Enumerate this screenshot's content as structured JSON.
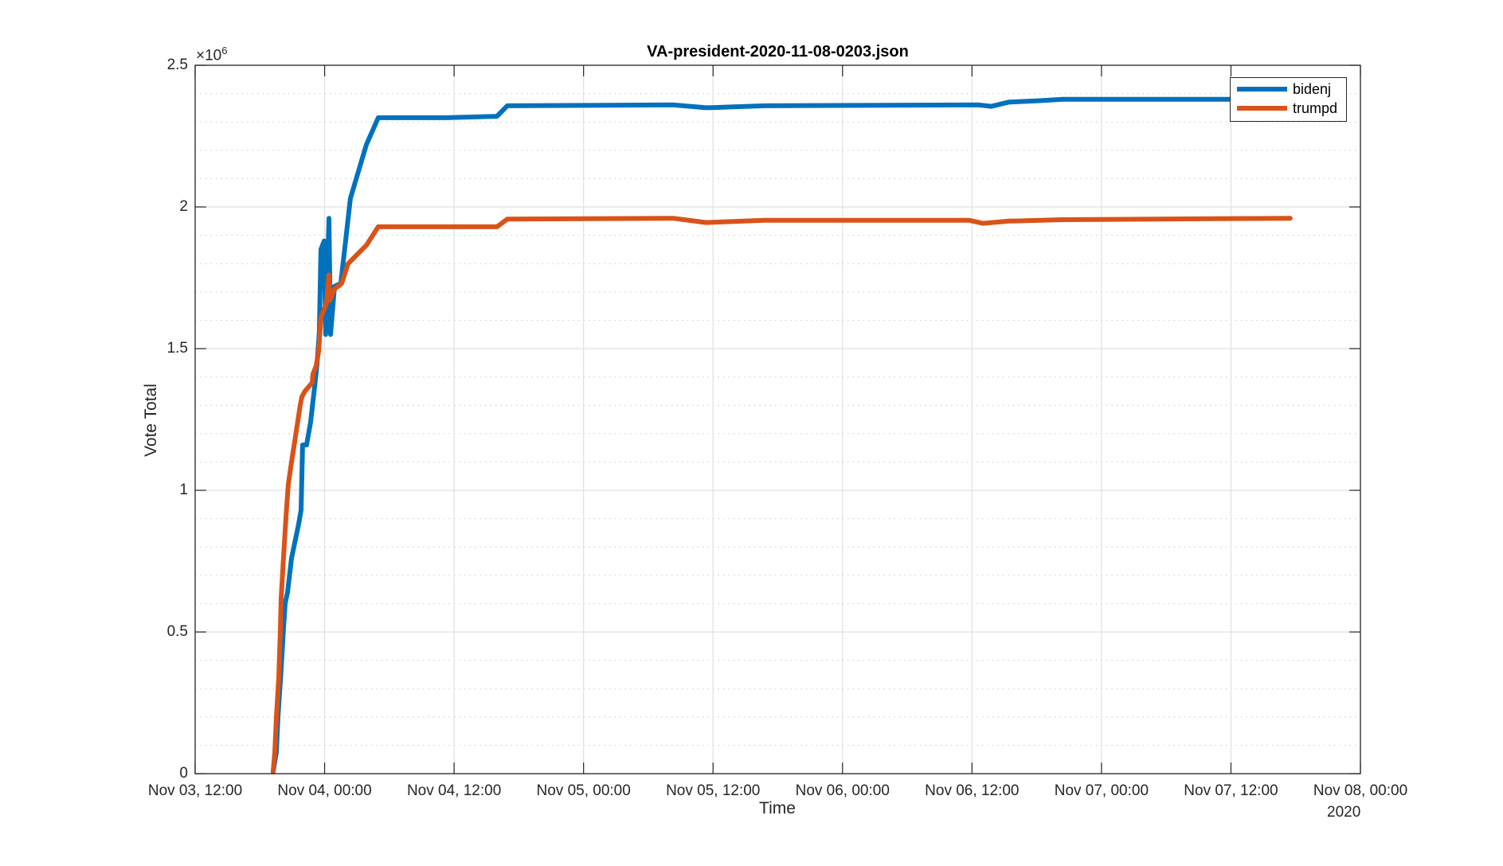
{
  "chart_data": {
    "type": "line",
    "title": "VA-president-2020-11-08-0203.json",
    "xlabel": "Time",
    "ylabel": "Vote Total",
    "y_exponent_label": "×10^6",
    "y_exponent_base": "×10",
    "y_exponent_power": "6",
    "x_axis_year_label": "2020",
    "xlim_hours_from_origin": [
      0,
      108
    ],
    "x_origin": "Nov 03, 12:00",
    "ylim": [
      0,
      2500000
    ],
    "x_ticks": [
      {
        "label": "Nov 03, 12:00",
        "hours": 0
      },
      {
        "label": "Nov 04, 00:00",
        "hours": 12
      },
      {
        "label": "Nov 04, 12:00",
        "hours": 24
      },
      {
        "label": "Nov 05, 00:00",
        "hours": 36
      },
      {
        "label": "Nov 05, 12:00",
        "hours": 48
      },
      {
        "label": "Nov 06, 00:00",
        "hours": 60
      },
      {
        "label": "Nov 06, 12:00",
        "hours": 72
      },
      {
        "label": "Nov 07, 00:00",
        "hours": 84
      },
      {
        "label": "Nov 07, 12:00",
        "hours": 96
      },
      {
        "label": "Nov 08, 00:00",
        "hours": 108
      }
    ],
    "y_ticks": [
      {
        "label": "0",
        "value": 0
      },
      {
        "label": "0.5",
        "value": 500000
      },
      {
        "label": "1",
        "value": 1000000
      },
      {
        "label": "1.5",
        "value": 1500000
      },
      {
        "label": "2",
        "value": 2000000
      },
      {
        "label": "2.5",
        "value": 2500000
      }
    ],
    "grid": {
      "major": true,
      "minor": true,
      "minor_step": 100000
    },
    "legend_position": "top-right",
    "series": [
      {
        "name": "bidenj",
        "color": "#0072BD",
        "x_hours": [
          7.23,
          7.53,
          7.68,
          7.97,
          8.19,
          8.34,
          8.56,
          8.93,
          9.59,
          9.82,
          9.96,
          10.33,
          10.7,
          11.0,
          11.29,
          11.51,
          11.66,
          11.96,
          12.1,
          12.4,
          12.55,
          12.92,
          13.5,
          14.39,
          15.87,
          16.97,
          23.25,
          27.97,
          28.93,
          44.28,
          47.38,
          52.77,
          72.6,
          73.8,
          75.4,
          78.3,
          80.4,
          101.5
        ],
        "values": [
          6000,
          76000,
          200000,
          370000,
          510000,
          600000,
          640000,
          760000,
          880000,
          930000,
          1160000,
          1160000,
          1240000,
          1340000,
          1440000,
          1560000,
          1850000,
          1880000,
          1550000,
          1960000,
          1550000,
          1720000,
          1730000,
          2030000,
          2220000,
          2315000,
          2315000,
          2320000,
          2357000,
          2360000,
          2350000,
          2357000,
          2360000,
          2355000,
          2370000,
          2375000,
          2380000,
          2380000
        ]
      },
      {
        "name": "trumpd",
        "color": "#D95319",
        "x_hours": [
          7.23,
          7.38,
          7.53,
          7.75,
          7.9,
          7.97,
          8.19,
          8.41,
          8.63,
          8.93,
          9.22,
          9.74,
          9.89,
          10.18,
          10.85,
          10.92,
          11.22,
          11.44,
          11.66,
          12.18,
          12.4,
          12.47,
          12.92,
          13.58,
          14.17,
          15.87,
          16.97,
          27.97,
          28.93,
          44.28,
          47.38,
          52.77,
          71.7,
          73.0,
          75.4,
          80.4,
          101.5
        ],
        "values": [
          6000,
          76000,
          200000,
          340000,
          510000,
          620000,
          760000,
          900000,
          1020000,
          1100000,
          1170000,
          1300000,
          1330000,
          1350000,
          1380000,
          1410000,
          1440000,
          1490000,
          1610000,
          1660000,
          1760000,
          1670000,
          1710000,
          1730000,
          1800000,
          1865000,
          1930000,
          1930000,
          1957000,
          1960000,
          1945000,
          1953000,
          1953000,
          1942000,
          1950000,
          1955000,
          1960000
        ]
      }
    ]
  }
}
